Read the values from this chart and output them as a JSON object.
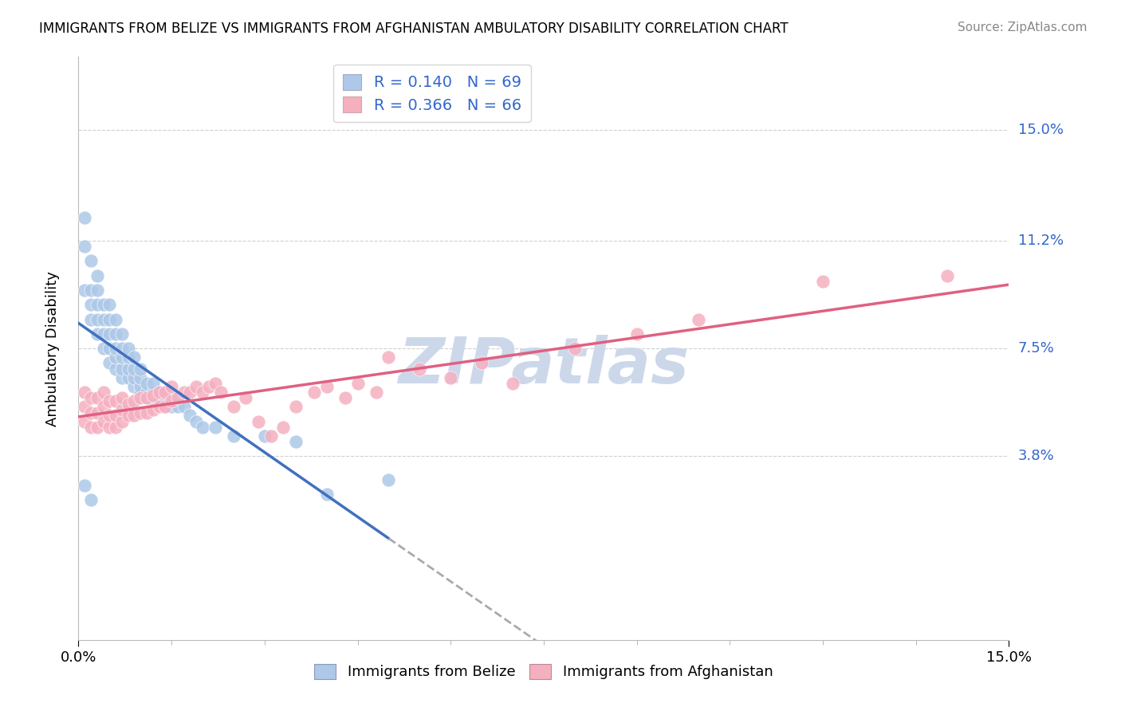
{
  "title": "IMMIGRANTS FROM BELIZE VS IMMIGRANTS FROM AFGHANISTAN AMBULATORY DISABILITY CORRELATION CHART",
  "source": "Source: ZipAtlas.com",
  "ylabel": "Ambulatory Disability",
  "ytick_values": [
    0.038,
    0.075,
    0.112,
    0.15
  ],
  "ytick_labels": [
    "3.8%",
    "7.5%",
    "11.2%",
    "15.0%"
  ],
  "xlim": [
    0.0,
    0.15
  ],
  "ylim": [
    -0.025,
    0.175
  ],
  "belize_R": 0.14,
  "belize_N": 69,
  "afghanistan_R": 0.366,
  "afghanistan_N": 66,
  "belize_color": "#adc8e8",
  "afghanistan_color": "#f5b0c0",
  "belize_line_color": "#4070c0",
  "afghanistan_line_color": "#e06080",
  "dash_color": "#aaaaaa",
  "watermark": "ZIPatlas",
  "watermark_color": "#ccd8ea",
  "belize_x": [
    0.001,
    0.001,
    0.001,
    0.002,
    0.002,
    0.002,
    0.002,
    0.003,
    0.003,
    0.003,
    0.003,
    0.003,
    0.004,
    0.004,
    0.004,
    0.004,
    0.005,
    0.005,
    0.005,
    0.005,
    0.005,
    0.006,
    0.006,
    0.006,
    0.006,
    0.006,
    0.007,
    0.007,
    0.007,
    0.007,
    0.007,
    0.008,
    0.008,
    0.008,
    0.008,
    0.009,
    0.009,
    0.009,
    0.009,
    0.01,
    0.01,
    0.01,
    0.01,
    0.011,
    0.011,
    0.011,
    0.012,
    0.012,
    0.012,
    0.013,
    0.013,
    0.014,
    0.014,
    0.015,
    0.015,
    0.016,
    0.016,
    0.017,
    0.018,
    0.019,
    0.02,
    0.022,
    0.025,
    0.03,
    0.035,
    0.04,
    0.05,
    0.001,
    0.002
  ],
  "belize_y": [
    0.095,
    0.11,
    0.12,
    0.085,
    0.09,
    0.095,
    0.105,
    0.08,
    0.085,
    0.09,
    0.095,
    0.1,
    0.075,
    0.08,
    0.085,
    0.09,
    0.07,
    0.075,
    0.08,
    0.085,
    0.09,
    0.068,
    0.072,
    0.075,
    0.08,
    0.085,
    0.065,
    0.068,
    0.072,
    0.075,
    0.08,
    0.065,
    0.068,
    0.072,
    0.075,
    0.062,
    0.065,
    0.068,
    0.072,
    0.06,
    0.062,
    0.065,
    0.068,
    0.058,
    0.06,
    0.063,
    0.058,
    0.06,
    0.063,
    0.058,
    0.06,
    0.055,
    0.058,
    0.055,
    0.058,
    0.055,
    0.058,
    0.055,
    0.052,
    0.05,
    0.048,
    0.048,
    0.045,
    0.045,
    0.043,
    0.025,
    0.03,
    0.028,
    0.023
  ],
  "afghanistan_x": [
    0.001,
    0.001,
    0.001,
    0.002,
    0.002,
    0.002,
    0.003,
    0.003,
    0.003,
    0.004,
    0.004,
    0.004,
    0.005,
    0.005,
    0.005,
    0.006,
    0.006,
    0.006,
    0.007,
    0.007,
    0.007,
    0.008,
    0.008,
    0.009,
    0.009,
    0.01,
    0.01,
    0.011,
    0.011,
    0.012,
    0.012,
    0.013,
    0.013,
    0.014,
    0.014,
    0.015,
    0.015,
    0.016,
    0.017,
    0.018,
    0.019,
    0.02,
    0.021,
    0.022,
    0.023,
    0.025,
    0.027,
    0.029,
    0.031,
    0.033,
    0.035,
    0.038,
    0.04,
    0.043,
    0.045,
    0.048,
    0.05,
    0.055,
    0.06,
    0.065,
    0.07,
    0.08,
    0.09,
    0.1,
    0.12,
    0.14
  ],
  "afghanistan_y": [
    0.05,
    0.055,
    0.06,
    0.048,
    0.053,
    0.058,
    0.048,
    0.053,
    0.058,
    0.05,
    0.055,
    0.06,
    0.048,
    0.052,
    0.057,
    0.048,
    0.052,
    0.057,
    0.05,
    0.054,
    0.058,
    0.052,
    0.056,
    0.052,
    0.057,
    0.053,
    0.058,
    0.053,
    0.058,
    0.054,
    0.059,
    0.055,
    0.06,
    0.055,
    0.06,
    0.057,
    0.062,
    0.058,
    0.06,
    0.06,
    0.062,
    0.06,
    0.062,
    0.063,
    0.06,
    0.055,
    0.058,
    0.05,
    0.045,
    0.048,
    0.055,
    0.06,
    0.062,
    0.058,
    0.063,
    0.06,
    0.072,
    0.068,
    0.065,
    0.07,
    0.063,
    0.075,
    0.08,
    0.085,
    0.098,
    0.1
  ]
}
